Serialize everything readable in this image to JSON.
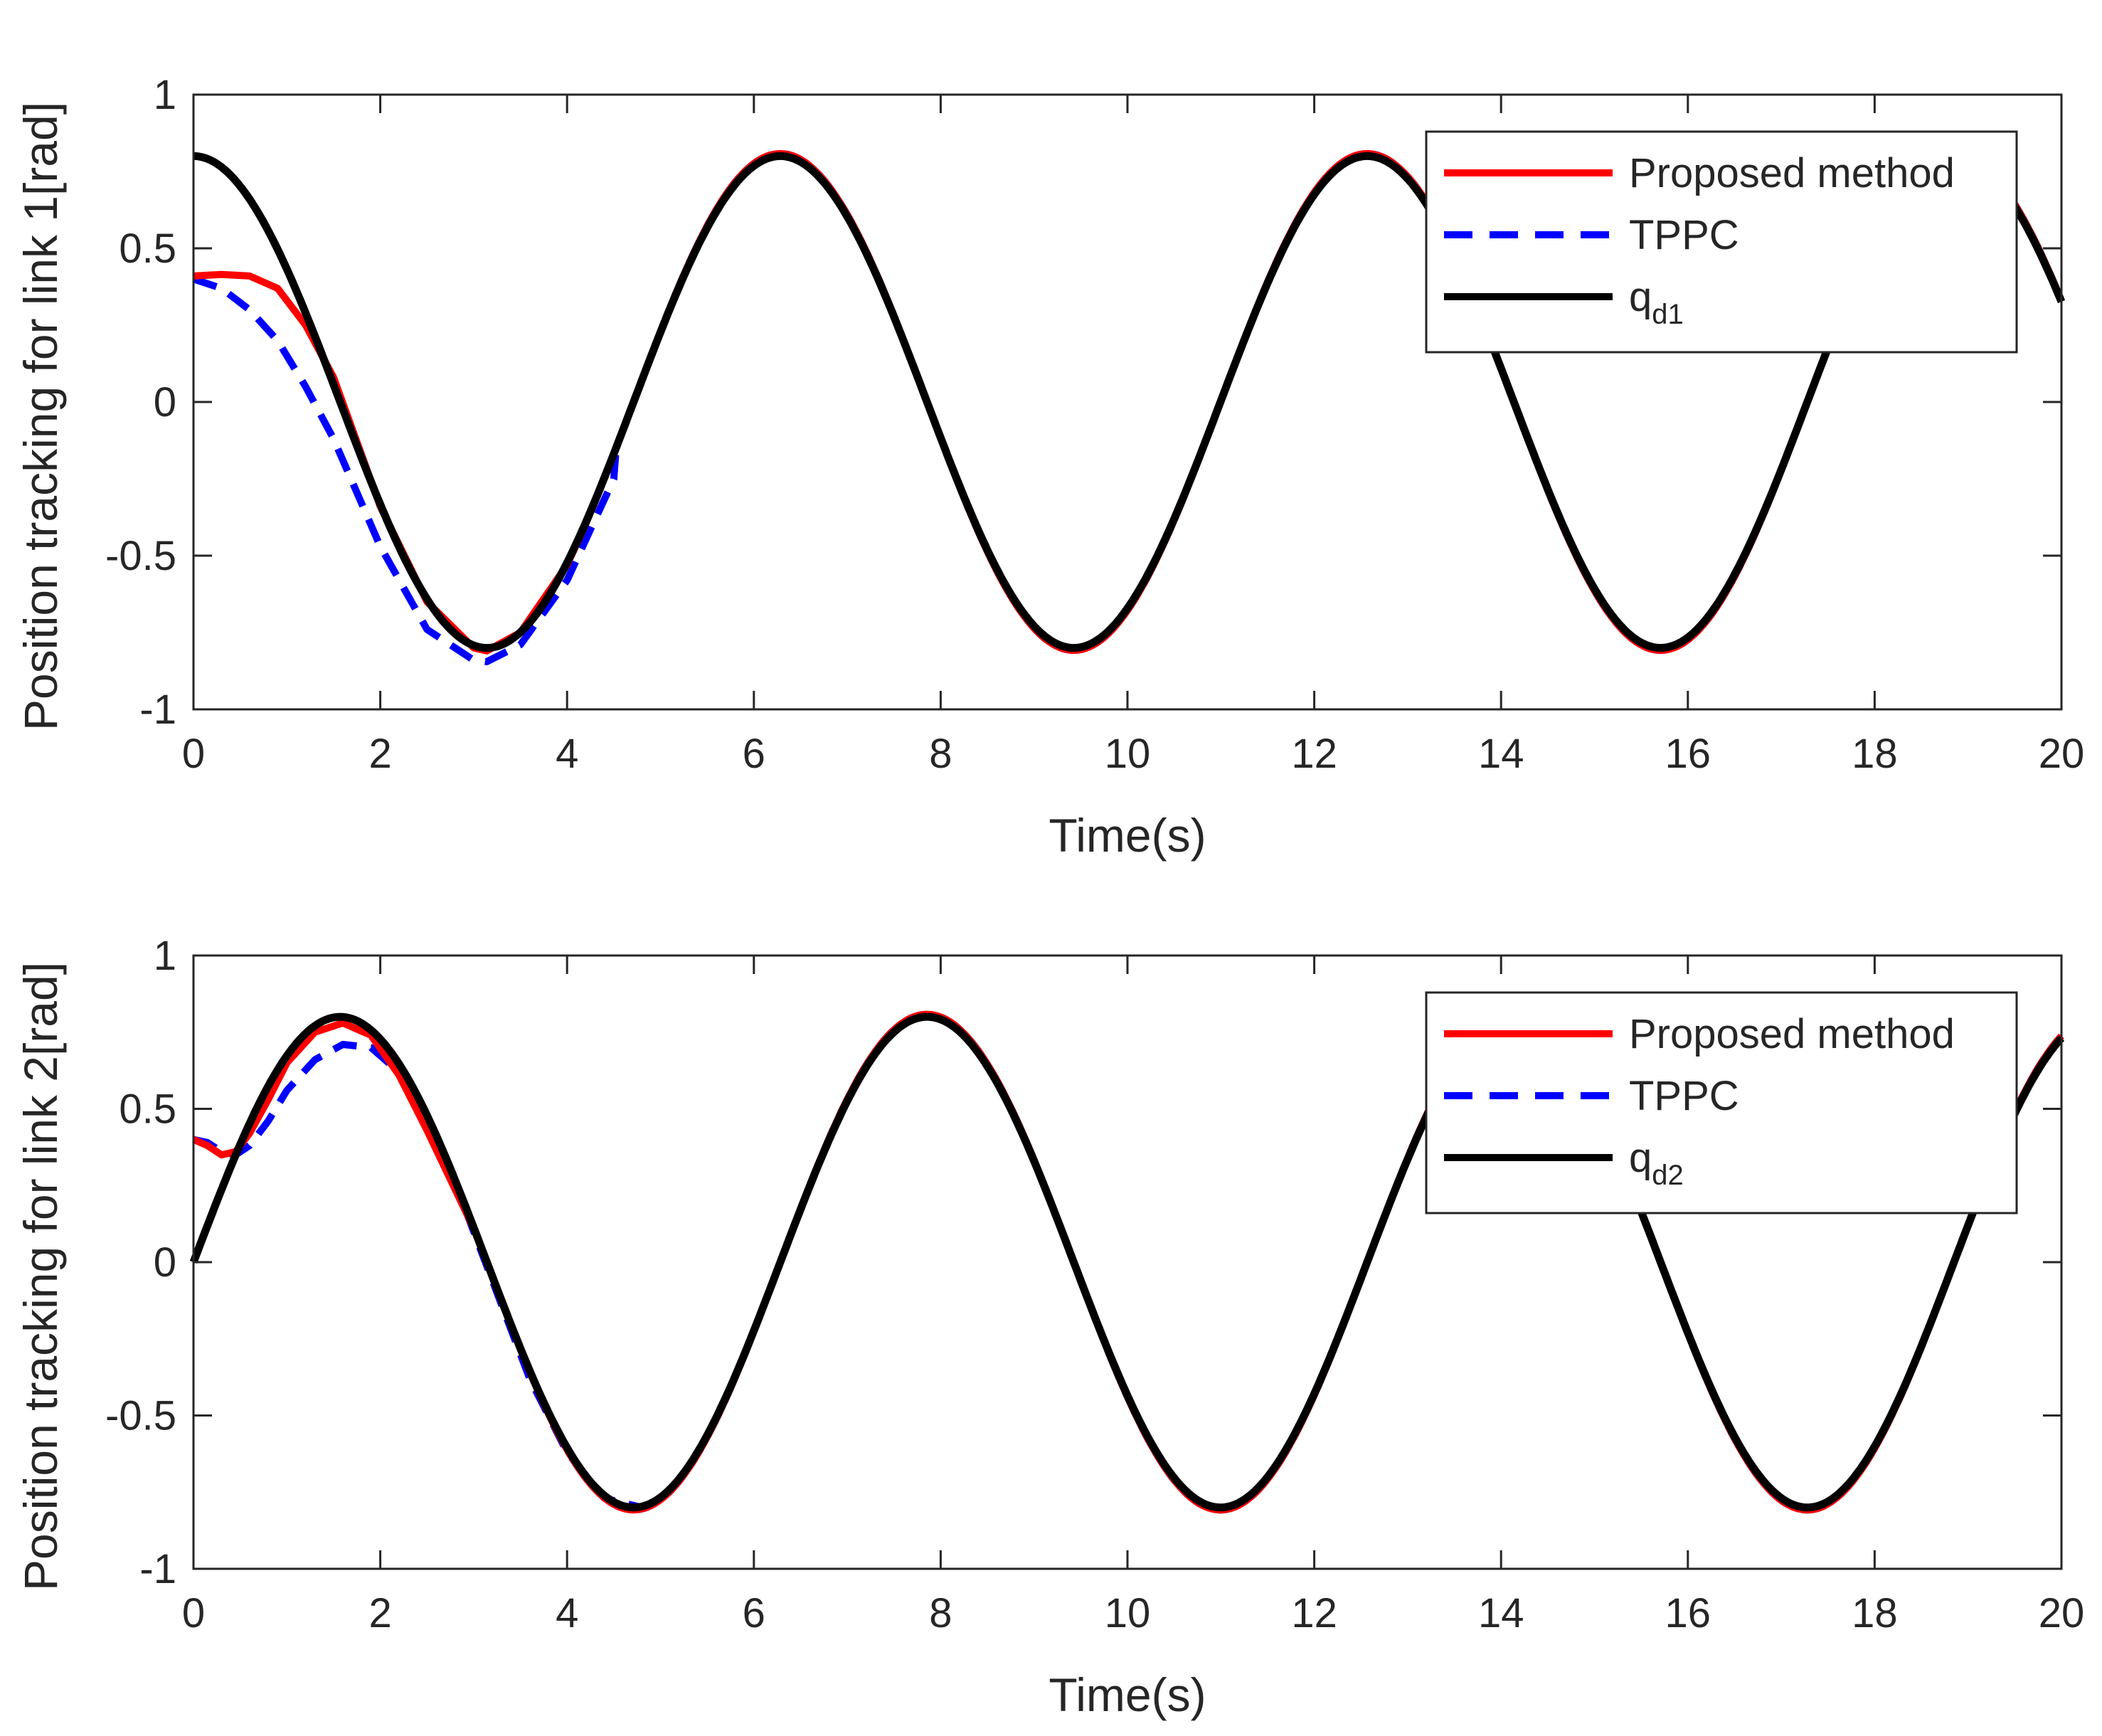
{
  "chart_data": [
    {
      "type": "line",
      "xlabel": "Time(s)",
      "ylabel": "Position tracking for link 1[rad]",
      "xlim": [
        0,
        20
      ],
      "ylim": [
        -1,
        1
      ],
      "xticks": [
        0,
        2,
        4,
        6,
        8,
        10,
        12,
        14,
        16,
        18,
        20
      ],
      "yticks": [
        -1,
        -0.5,
        0,
        0.5,
        1
      ],
      "xtick_labels": [
        "0",
        "2",
        "4",
        "6",
        "8",
        "10",
        "12",
        "14",
        "16",
        "18",
        "20"
      ],
      "ytick_labels": [
        "-1",
        "-0.5",
        "0",
        "0.5",
        "1"
      ],
      "grid": false,
      "legend_position": "top-right",
      "reference": {
        "func": "cos",
        "amplitude": 0.8
      },
      "series": [
        {
          "name": "Proposed method",
          "color": "#ff0000",
          "style": "solid",
          "x": [
            0,
            0.3,
            0.6,
            0.9,
            1.2,
            1.5,
            2.0,
            2.5,
            3.0,
            3.14,
            3.5,
            4.0
          ],
          "y": [
            0.41,
            0.415,
            0.41,
            0.37,
            0.25,
            0.08,
            -0.34,
            -0.65,
            -0.8,
            -0.81,
            -0.75,
            -0.53
          ]
        },
        {
          "name": "TPPC",
          "color": "#0000ff",
          "style": "dashed",
          "x": [
            0,
            0.3,
            0.6,
            0.9,
            1.2,
            1.5,
            2.0,
            2.5,
            3.0,
            3.14,
            3.5,
            4.0,
            4.5
          ],
          "y": [
            0.4,
            0.37,
            0.3,
            0.2,
            0.05,
            -0.12,
            -0.47,
            -0.74,
            -0.84,
            -0.845,
            -0.79,
            -0.58,
            -0.25
          ]
        },
        {
          "name": "q",
          "subscript": "d1",
          "color": "#000000",
          "style": "solid",
          "x": [
            0,
            20
          ]
        }
      ]
    },
    {
      "type": "line",
      "xlabel": "Time(s)",
      "ylabel": "Position tracking for link 2[rad]",
      "xlim": [
        0,
        20
      ],
      "ylim": [
        -1,
        1
      ],
      "xticks": [
        0,
        2,
        4,
        6,
        8,
        10,
        12,
        14,
        16,
        18,
        20
      ],
      "yticks": [
        -1,
        -0.5,
        0,
        0.5,
        1
      ],
      "xtick_labels": [
        "0",
        "2",
        "4",
        "6",
        "8",
        "10",
        "12",
        "14",
        "16",
        "18",
        "20"
      ],
      "ytick_labels": [
        "-1",
        "-0.5",
        "0",
        "0.5",
        "1"
      ],
      "grid": false,
      "legend_position": "top-right",
      "reference": {
        "func": "sin",
        "amplitude": 0.8
      },
      "series": [
        {
          "name": "Proposed method",
          "color": "#ff0000",
          "style": "solid",
          "x": [
            0,
            0.15,
            0.3,
            0.45,
            0.6,
            0.8,
            1.0,
            1.3,
            1.6,
            1.9,
            2.2,
            2.5,
            3.0
          ],
          "y": [
            0.4,
            0.38,
            0.35,
            0.36,
            0.42,
            0.53,
            0.65,
            0.75,
            0.78,
            0.74,
            0.61,
            0.43,
            0.11
          ]
        },
        {
          "name": "TPPC",
          "color": "#0000ff",
          "style": "dashed",
          "x": [
            0,
            0.15,
            0.3,
            0.45,
            0.6,
            0.8,
            1.0,
            1.3,
            1.6,
            1.9,
            2.2,
            2.5,
            2.8,
            3.2,
            3.6,
            4.0,
            4.4,
            4.8
          ],
          "y": [
            0.4,
            0.39,
            0.36,
            0.35,
            0.38,
            0.46,
            0.56,
            0.66,
            0.71,
            0.7,
            0.62,
            0.46,
            0.26,
            -0.06,
            -0.38,
            -0.62,
            -0.77,
            -0.8
          ]
        },
        {
          "name": "q",
          "subscript": "d2",
          "color": "#000000",
          "style": "solid",
          "x": [
            0,
            20
          ]
        }
      ]
    }
  ]
}
